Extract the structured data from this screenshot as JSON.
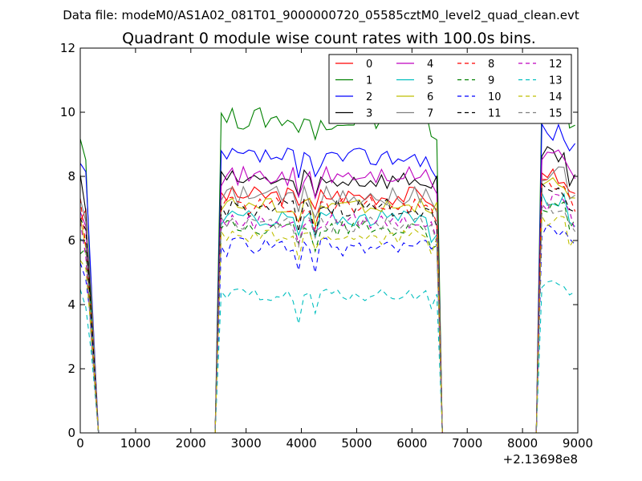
{
  "chart_data": {
    "type": "line",
    "suptitle": "Data file: modeM0/AS1A02_081T01_9000000720_05585cztM0_level2_quad_clean.evt",
    "title": "Quadrant 0 module wise count rates with 100.0s bins.",
    "xlabel": "",
    "ylabel": "",
    "offset_label": "+2.13698e8",
    "xlim": [
      0,
      9000
    ],
    "ylim": [
      0,
      12
    ],
    "x_ticks": [
      "0",
      "1000",
      "2000",
      "3000",
      "4000",
      "5000",
      "6000",
      "7000",
      "8000",
      "9000"
    ],
    "y_ticks": [
      "0",
      "2",
      "4",
      "6",
      "8",
      "10",
      "12"
    ],
    "grid": false,
    "legend_position": "top-right",
    "legend_columns": 4,
    "bin_width": 100,
    "segments": [
      {
        "x_start": 0,
        "ramp_down_end": 330
      },
      {
        "ramp_up_start": 2440,
        "x_start": 2550,
        "x_end": 6450,
        "ramp_down_end": 6550
      },
      {
        "ramp_up_start": 8250,
        "x_start": 8350,
        "x_end": 9000
      }
    ],
    "series": [
      {
        "name": "0",
        "color": "#ff0000",
        "dash": "solid",
        "level": 7.4,
        "noise": 0.3,
        "dip": 0.6
      },
      {
        "name": "1",
        "color": "#008000",
        "dash": "solid",
        "level": 9.8,
        "noise": 0.35,
        "dip": 0.8
      },
      {
        "name": "2",
        "color": "#0000ff",
        "dash": "solid",
        "level": 8.6,
        "noise": 0.3,
        "dip": 0.7
      },
      {
        "name": "3",
        "color": "#000000",
        "dash": "solid",
        "level": 7.9,
        "noise": 0.3,
        "dip": 0.6
      },
      {
        "name": "4",
        "color": "#bf00bf",
        "dash": "solid",
        "level": 8.0,
        "noise": 0.3,
        "dip": 0.7
      },
      {
        "name": "5",
        "color": "#00bfbf",
        "dash": "solid",
        "level": 6.7,
        "noise": 0.25,
        "dip": 0.6
      },
      {
        "name": "6",
        "color": "#bfbf00",
        "dash": "solid",
        "level": 7.1,
        "noise": 0.25,
        "dip": 0.6
      },
      {
        "name": "7",
        "color": "#808080",
        "dash": "solid",
        "level": 7.4,
        "noise": 0.3,
        "dip": 0.6
      },
      {
        "name": "8",
        "color": "#ff0000",
        "dash": "dashed",
        "level": 7.1,
        "noise": 0.3,
        "dip": 0.6
      },
      {
        "name": "9",
        "color": "#008000",
        "dash": "dashed",
        "level": 6.4,
        "noise": 0.25,
        "dip": 0.6
      },
      {
        "name": "10",
        "color": "#0000ff",
        "dash": "dashed",
        "level": 5.8,
        "noise": 0.3,
        "dip": 0.6
      },
      {
        "name": "11",
        "color": "#000000",
        "dash": "dashed",
        "level": 7.0,
        "noise": 0.3,
        "dip": 0.6
      },
      {
        "name": "12",
        "color": "#bf00bf",
        "dash": "dashed",
        "level": 6.6,
        "noise": 0.25,
        "dip": 0.6
      },
      {
        "name": "13",
        "color": "#00bfbf",
        "dash": "dashed",
        "level": 4.3,
        "noise": 0.2,
        "dip": 0.8
      },
      {
        "name": "14",
        "color": "#bfbf00",
        "dash": "dashed",
        "level": 6.1,
        "noise": 0.25,
        "dip": 0.6
      },
      {
        "name": "15",
        "color": "#808080",
        "dash": "dashed",
        "level": 6.5,
        "noise": 0.25,
        "dip": 0.6
      }
    ]
  }
}
